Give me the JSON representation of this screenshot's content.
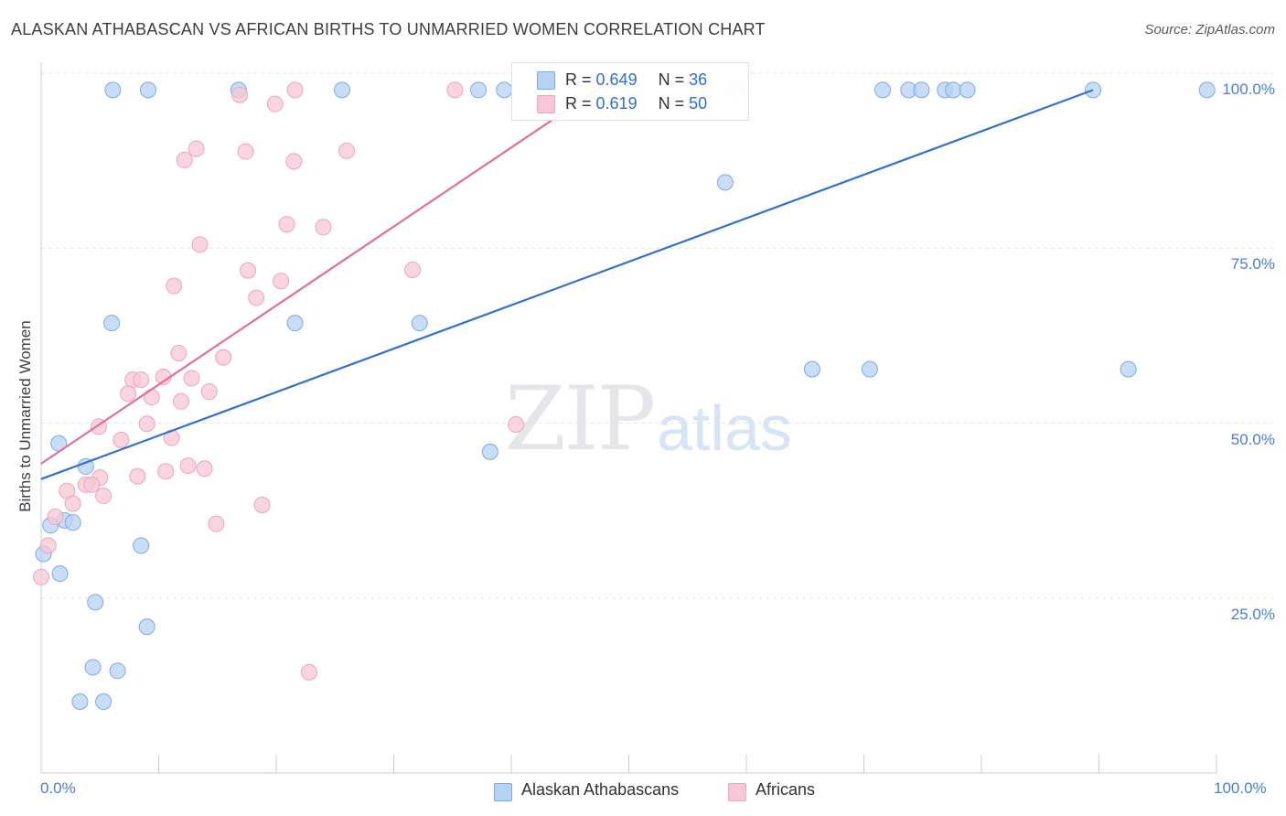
{
  "chart_data": {
    "type": "scatter",
    "title": "ALASKAN ATHABASCAN VS AFRICAN BIRTHS TO UNMARRIED WOMEN CORRELATION CHART",
    "source": "Source: ZipAtlas.com",
    "xlabel": "",
    "ylabel": "Births to Unmarried Women",
    "xlim": [
      0,
      100
    ],
    "ylim": [
      0,
      100
    ],
    "x_ticks": [
      "0.0%",
      "100.0%"
    ],
    "y_ticks": [
      {
        "value": 25,
        "label": "25.0%"
      },
      {
        "value": 50,
        "label": "50.0%"
      },
      {
        "value": 75,
        "label": "75.0%"
      },
      {
        "value": 100,
        "label": "100.0%"
      }
    ],
    "watermark": {
      "left": "ZIP",
      "right": "atlas"
    },
    "legend": {
      "r_label": "R =",
      "n_label": "N ="
    },
    "series": [
      {
        "name": "Alaskan Athabascans",
        "color": "#7aaae8",
        "fill": "#b8d2f3",
        "line_color": "#2f72cc",
        "R": "0.649",
        "N": "36",
        "trend": [
          [
            0,
            42
          ],
          [
            89.5,
            97.6
          ]
        ],
        "points": [
          [
            6.1,
            97.6
          ],
          [
            9.1,
            97.6
          ],
          [
            16.8,
            97.6
          ],
          [
            25.6,
            97.6
          ],
          [
            37.2,
            97.6
          ],
          [
            39.4,
            97.6
          ],
          [
            71.6,
            97.6
          ],
          [
            73.8,
            97.6
          ],
          [
            74.9,
            97.6
          ],
          [
            76.9,
            97.6
          ],
          [
            77.6,
            97.6
          ],
          [
            78.8,
            97.6
          ],
          [
            89.5,
            97.6
          ],
          [
            99.2,
            97.6
          ],
          [
            58.2,
            84.4
          ],
          [
            6.0,
            64.3
          ],
          [
            21.6,
            64.3
          ],
          [
            32.2,
            64.3
          ],
          [
            65.6,
            57.7
          ],
          [
            70.5,
            57.7
          ],
          [
            92.5,
            57.7
          ],
          [
            1.5,
            47.1
          ],
          [
            38.2,
            45.9
          ],
          [
            3.8,
            43.8
          ],
          [
            0.8,
            35.4
          ],
          [
            2.0,
            36.1
          ],
          [
            2.7,
            35.8
          ],
          [
            0.2,
            31.3
          ],
          [
            1.6,
            28.5
          ],
          [
            8.5,
            32.5
          ],
          [
            4.6,
            24.4
          ],
          [
            9.0,
            20.9
          ],
          [
            4.4,
            15.1
          ],
          [
            6.5,
            14.6
          ],
          [
            3.3,
            10.2
          ],
          [
            5.3,
            10.2
          ]
        ]
      },
      {
        "name": "Africans",
        "color": "#f0a3bb",
        "fill": "#f7c7d6",
        "line_color": "#e36e96",
        "R": "0.619",
        "N": "50",
        "trend": [
          [
            0,
            44.2
          ],
          [
            49.4,
            100
          ]
        ],
        "points": [
          [
            21.6,
            97.6
          ],
          [
            35.2,
            97.6
          ],
          [
            55.9,
            97.7
          ],
          [
            59.1,
            97.7
          ],
          [
            16.9,
            96.9
          ],
          [
            19.9,
            95.6
          ],
          [
            13.2,
            89.2
          ],
          [
            12.2,
            87.6
          ],
          [
            17.4,
            88.8
          ],
          [
            21.5,
            87.4
          ],
          [
            26.0,
            88.9
          ],
          [
            20.9,
            78.4
          ],
          [
            24.0,
            78.0
          ],
          [
            13.5,
            75.5
          ],
          [
            17.6,
            71.8
          ],
          [
            31.6,
            71.9
          ],
          [
            20.4,
            70.3
          ],
          [
            11.3,
            69.6
          ],
          [
            18.3,
            67.9
          ],
          [
            11.7,
            60.0
          ],
          [
            15.5,
            59.4
          ],
          [
            7.8,
            56.2
          ],
          [
            8.5,
            56.2
          ],
          [
            10.4,
            56.6
          ],
          [
            12.8,
            56.4
          ],
          [
            7.4,
            54.2
          ],
          [
            9.4,
            53.7
          ],
          [
            14.3,
            54.5
          ],
          [
            11.9,
            53.1
          ],
          [
            4.9,
            49.5
          ],
          [
            9.0,
            49.9
          ],
          [
            40.4,
            49.8
          ],
          [
            6.8,
            47.6
          ],
          [
            11.1,
            47.9
          ],
          [
            10.6,
            43.1
          ],
          [
            12.5,
            43.9
          ],
          [
            5.0,
            42.2
          ],
          [
            8.2,
            42.4
          ],
          [
            13.9,
            43.5
          ],
          [
            3.8,
            41.2
          ],
          [
            2.2,
            40.3
          ],
          [
            4.3,
            41.2
          ],
          [
            5.3,
            39.6
          ],
          [
            2.7,
            38.5
          ],
          [
            18.8,
            38.3
          ],
          [
            1.2,
            36.6
          ],
          [
            14.9,
            35.6
          ],
          [
            0.6,
            32.5
          ],
          [
            0.0,
            28.0
          ],
          [
            22.8,
            14.4
          ]
        ]
      }
    ]
  }
}
